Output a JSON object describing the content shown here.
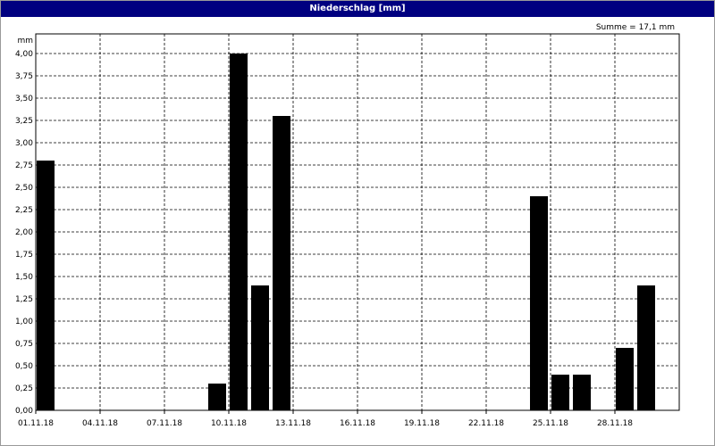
{
  "window": {
    "title": "Niederschlag [mm]"
  },
  "summary": "Summe = 17,1 mm",
  "chart_data": {
    "type": "bar",
    "title": "Niederschlag [mm]",
    "ylabel": "mm",
    "ylim": [
      0,
      4.0
    ],
    "y_ticks": [
      "0,00",
      "0,25",
      "0,50",
      "0,75",
      "1,00",
      "1,25",
      "1,50",
      "1,75",
      "2,00",
      "2,25",
      "2,50",
      "2,75",
      "3,00",
      "3,25",
      "3,50",
      "3,75",
      "4,00"
    ],
    "x_ticks": [
      "01.11.18",
      "04.11.18",
      "07.11.18",
      "10.11.18",
      "13.11.18",
      "16.11.18",
      "19.11.18",
      "22.11.18",
      "25.11.18",
      "28.11.18"
    ],
    "categories": [
      "01.11.18",
      "02.11.18",
      "03.11.18",
      "04.11.18",
      "05.11.18",
      "06.11.18",
      "07.11.18",
      "08.11.18",
      "09.11.18",
      "10.11.18",
      "11.11.18",
      "12.11.18",
      "13.11.18",
      "14.11.18",
      "15.11.18",
      "16.11.18",
      "17.11.18",
      "18.11.18",
      "19.11.18",
      "20.11.18",
      "21.11.18",
      "22.11.18",
      "23.11.18",
      "24.11.18",
      "25.11.18",
      "26.11.18",
      "27.11.18",
      "28.11.18",
      "29.11.18",
      "30.11.18"
    ],
    "values": [
      2.8,
      0,
      0,
      0,
      0,
      0,
      0,
      0,
      0.3,
      4.0,
      1.4,
      3.3,
      0,
      0,
      0,
      0,
      0,
      0,
      0,
      0,
      0,
      0,
      0,
      2.4,
      0.4,
      0.4,
      0,
      0.7,
      1.4,
      0
    ],
    "grid": true,
    "bar_color": "#000000"
  }
}
